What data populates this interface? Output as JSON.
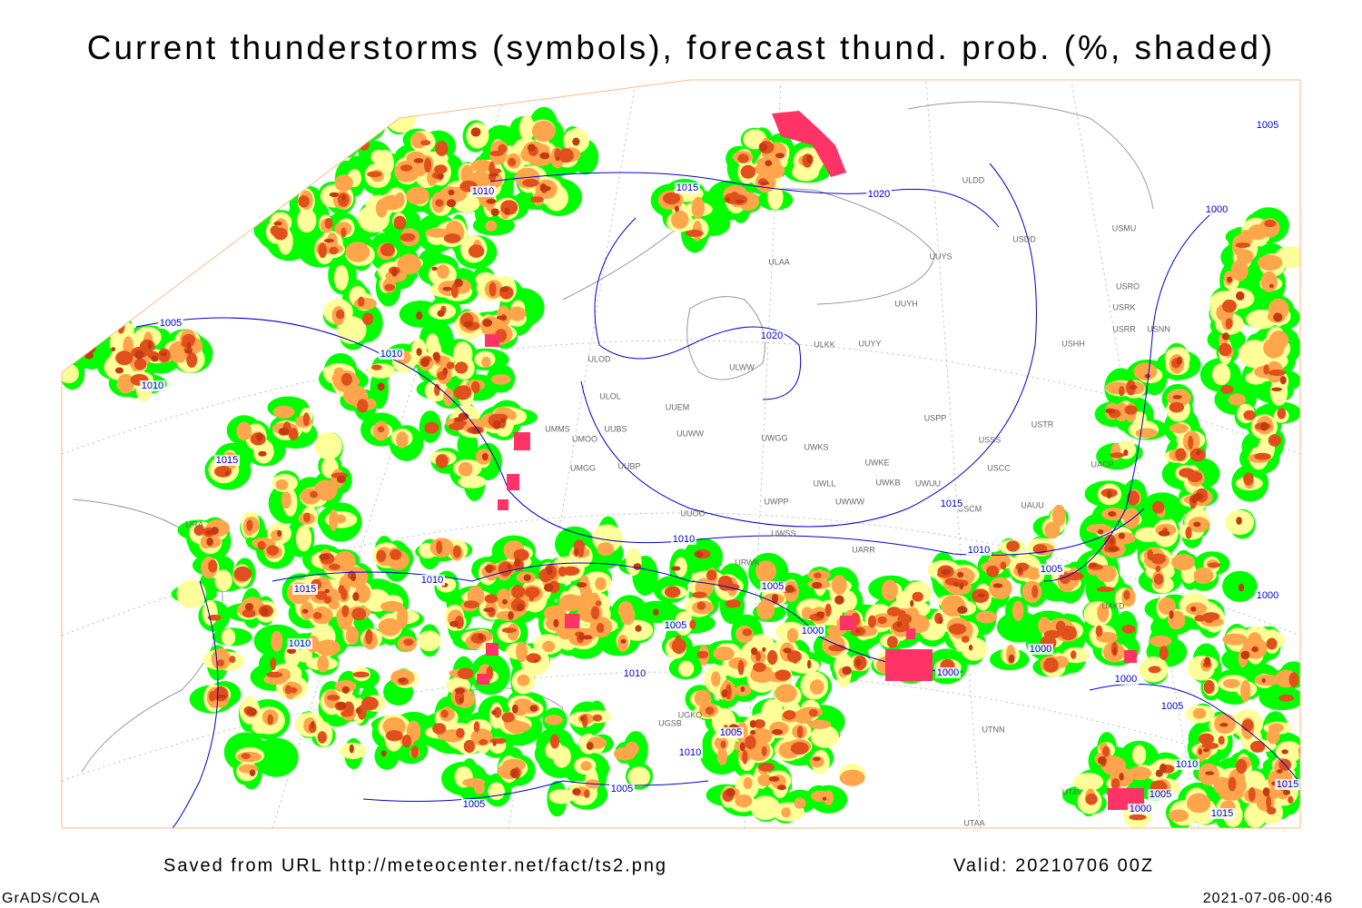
{
  "title": "Current thunderstorms (symbols), forecast thund. prob. (%, shaded)",
  "footer": {
    "source": "Saved from URL http://meteocenter.net/fact/ts2.png",
    "valid": "Valid: 20210706 00Z",
    "software": "GrADS/COLA",
    "timestamp": "2021-07-06-00:46"
  },
  "isobar_labels": [
    "1005",
    "1010",
    "1015",
    "1020",
    "1000",
    "1005",
    "1010",
    "1020",
    "1010",
    "1015",
    "1015",
    "1010",
    "1010",
    "1010",
    "1015",
    "1005",
    "1005",
    "1000",
    "1005",
    "1000",
    "1010",
    "1010",
    "1000",
    "1000",
    "1000",
    "1005",
    "1005",
    "1010",
    "1010",
    "1005",
    "1005",
    "1005",
    "1000",
    "1015",
    "1015"
  ],
  "stations": [
    "ULDD",
    "USDD",
    "USMU",
    "ULAA",
    "UUYS",
    "UUYH",
    "USRO",
    "USRK",
    "USRR",
    "USNN",
    "USHH",
    "ULKK",
    "UUYY",
    "ULWW",
    "ULOD",
    "ULOL",
    "UUEM",
    "UMMS",
    "UMOO",
    "UUBS",
    "UUWW",
    "UWGG",
    "UWKS",
    "USPP",
    "USTR",
    "USSS",
    "UWKE",
    "UMGG",
    "UUBP",
    "USCC",
    "UACP",
    "UWKB",
    "UWUU",
    "UWLL",
    "UWPP",
    "UWWW",
    "USCM",
    "UAUU",
    "UUOO",
    "UWSS",
    "UARR",
    "URWK",
    "UAKD",
    "UTNN",
    "UTAA",
    "UTAV",
    "UGKO",
    "UGSB",
    "LIRA"
  ]
}
